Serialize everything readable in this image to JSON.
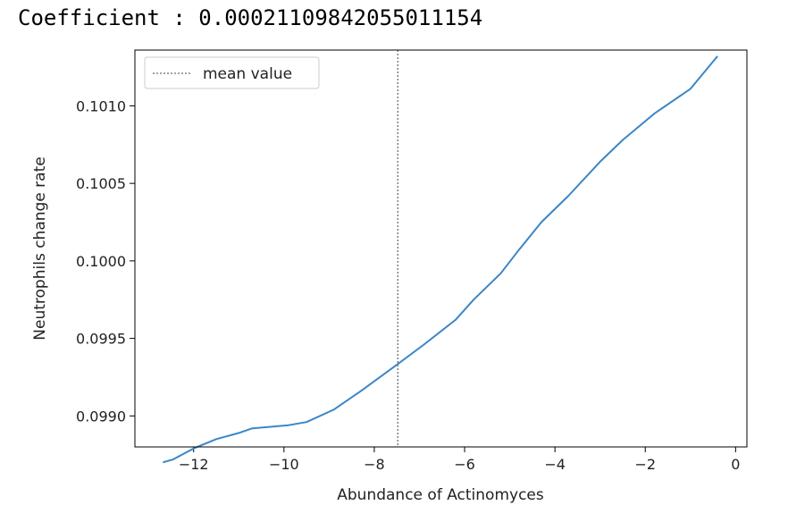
{
  "header": {
    "coefficient_text": "Coefficient : 0.00021109842055011154"
  },
  "chart_data": {
    "type": "line",
    "xlabel": "Abundance of Actinomyces",
    "ylabel": "Neutrophils change rate",
    "xlim": [
      -13.3,
      0.25
    ],
    "ylim": [
      0.0988,
      0.10136
    ],
    "xticks": [
      -12,
      -10,
      -8,
      -6,
      -4,
      -2,
      0
    ],
    "xtick_labels": [
      "−12",
      "−10",
      "−8",
      "−6",
      "−4",
      "−2",
      "0"
    ],
    "yticks": [
      0.099,
      0.0995,
      0.1,
      0.1005,
      0.101
    ],
    "ytick_labels": [
      "0.0990",
      "0.0995",
      "0.1000",
      "0.1005",
      "0.1010"
    ],
    "series": [
      {
        "color": "#3b86c6",
        "x": [
          -12.68,
          -12.45,
          -12.0,
          -11.5,
          -11.0,
          -10.7,
          -10.3,
          -9.9,
          -9.5,
          -8.9,
          -8.3,
          -7.5,
          -6.9,
          -6.2,
          -5.8,
          -5.2,
          -4.8,
          -4.3,
          -3.7,
          -3.0,
          -2.5,
          -1.8,
          -1.0,
          -0.4
        ],
        "y": [
          0.0987,
          0.09872,
          0.09879,
          0.09885,
          0.09889,
          0.09892,
          0.09893,
          0.09894,
          0.09896,
          0.09904,
          0.09916,
          0.09933,
          0.09946,
          0.09962,
          0.09975,
          0.09992,
          0.10007,
          0.10025,
          0.10042,
          0.10064,
          0.10078,
          0.10095,
          0.10111,
          0.10132
        ]
      }
    ],
    "reference_line": {
      "orientation": "vertical",
      "x": -7.48,
      "label": "mean value",
      "color": "#444444",
      "style": "dashed"
    },
    "legend": {
      "placement": "upper-left",
      "entries": [
        "mean value"
      ]
    },
    "grid": false
  }
}
